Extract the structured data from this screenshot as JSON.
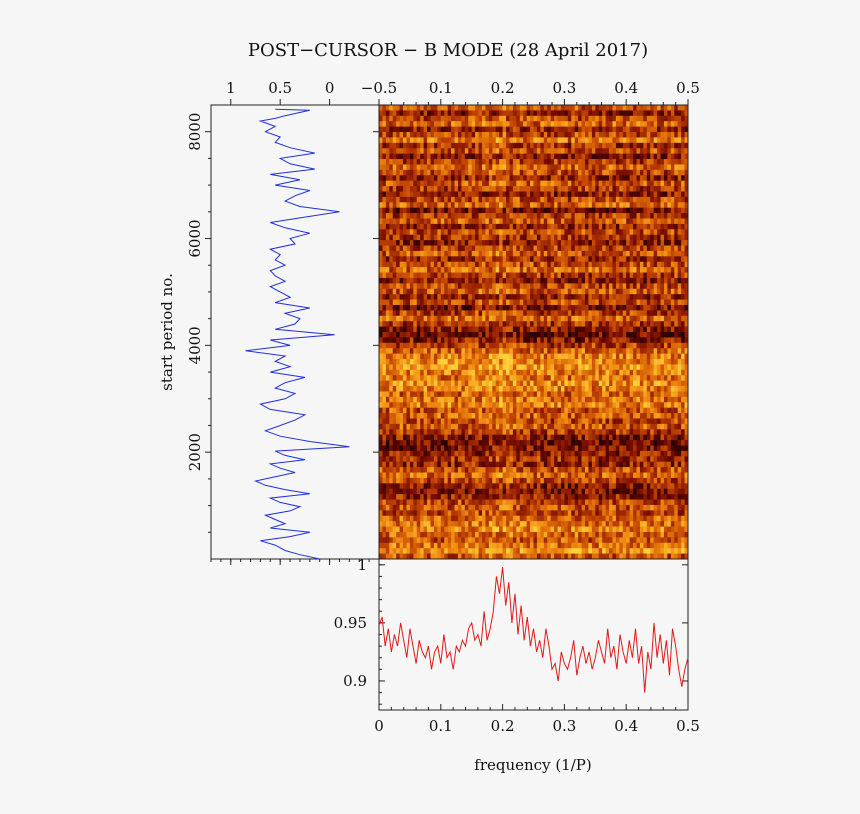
{
  "title": "POST−CURSOR − B MODE (28 April 2017)",
  "chart_data": [
    {
      "type": "line",
      "name": "side-profile",
      "orientation": "vertical",
      "xlim": [
        1.2,
        -0.5
      ],
      "ylim": [
        0,
        8500
      ],
      "x_ticks": [
        "1",
        "0.5",
        "0",
        "−0.5"
      ],
      "x_tick_values": [
        1,
        0.5,
        0,
        -0.5
      ],
      "y_ticks": [
        "2000",
        "4000",
        "6000",
        "8000"
      ],
      "y_tick_values": [
        2000,
        4000,
        6000,
        8000
      ],
      "ylabel": "start period no.",
      "color": "#1f2fe0",
      "x": [
        0.1,
        0.3,
        0.45,
        0.55,
        0.7,
        0.4,
        0.2,
        0.6,
        0.45,
        0.55,
        0.65,
        0.4,
        0.3,
        0.5,
        0.6,
        0.2,
        0.45,
        0.65,
        0.75,
        0.55,
        0.35,
        0.5,
        0.6,
        0.25,
        0.45,
        0.55,
        -0.2,
        0.2,
        0.5,
        0.65,
        0.5,
        0.35,
        0.25,
        0.6,
        0.7,
        0.45,
        0.35,
        0.55,
        0.45,
        0.25,
        0.6,
        0.4,
        0.55,
        0.45,
        0.85,
        0.4,
        0.6,
        -0.05,
        0.55,
        0.35,
        0.3,
        0.45,
        0.2,
        0.55,
        0.4,
        0.5,
        0.6,
        0.45,
        0.55,
        0.6,
        0.45,
        0.55,
        0.5,
        0.6,
        0.35,
        0.4,
        0.2,
        0.45,
        0.6,
        -0.1,
        0.3,
        0.45,
        0.35,
        0.2,
        0.55,
        0.3,
        0.6,
        0.15,
        0.4,
        0.5,
        0.15,
        0.4,
        0.55,
        0.5,
        0.65,
        0.55,
        0.7,
        0.55,
        0.45,
        0.2,
        0.55
      ],
      "y": [
        0,
        80,
        160,
        260,
        340,
        420,
        500,
        580,
        660,
        740,
        820,
        900,
        980,
        1060,
        1140,
        1220,
        1300,
        1380,
        1460,
        1540,
        1620,
        1700,
        1780,
        1860,
        1940,
        2020,
        2100,
        2200,
        2300,
        2400,
        2500,
        2600,
        2700,
        2800,
        2900,
        3000,
        3100,
        3200,
        3300,
        3400,
        3500,
        3600,
        3700,
        3800,
        3900,
        4000,
        4100,
        4200,
        4300,
        4400,
        4500,
        4600,
        4700,
        4800,
        4900,
        5000,
        5100,
        5200,
        5300,
        5400,
        5500,
        5600,
        5700,
        5800,
        5900,
        6000,
        6100,
        6200,
        6300,
        6500,
        6600,
        6700,
        6800,
        6900,
        7000,
        7100,
        7200,
        7300,
        7400,
        7500,
        7600,
        7700,
        7800,
        7900,
        8000,
        8100,
        8200,
        8250,
        8300,
        8400,
        8420
      ]
    },
    {
      "type": "heatmap",
      "name": "fluctuation-spectrum",
      "x_ticks": [
        "0.1",
        "0.2",
        "0.3",
        "0.4",
        "0.5"
      ],
      "x_tick_values": [
        0.1,
        0.2,
        0.3,
        0.4,
        0.5
      ],
      "xlim": [
        0,
        0.5
      ],
      "ylim": [
        0,
        8500
      ],
      "colormap": [
        "#2a0000",
        "#7a0d00",
        "#c24400",
        "#f08a10",
        "#ffd23a"
      ],
      "rows": 84,
      "cols": 90,
      "row_levels": [
        0.55,
        0.3,
        0.5,
        0.6,
        0.35,
        0.5,
        0.65,
        0.4,
        0.55,
        0.3,
        0.45,
        0.6,
        0.5,
        0.35,
        0.55,
        0.45,
        0.3,
        0.5,
        0.6,
        0.25,
        0.45,
        0.55,
        0.35,
        0.5,
        0.4,
        0.3,
        0.45,
        0.55,
        0.35,
        0.5,
        0.6,
        0.45,
        0.3,
        0.5,
        0.55,
        0.35,
        0.5,
        0.25,
        0.45,
        0.6,
        0.4,
        0.3,
        0.2,
        0.3,
        0.45,
        0.6,
        0.7,
        0.75,
        0.8,
        0.7,
        0.65,
        0.75,
        0.7,
        0.6,
        0.65,
        0.7,
        0.55,
        0.6,
        0.5,
        0.55,
        0.45,
        0.3,
        0.2,
        0.25,
        0.3,
        0.4,
        0.35,
        0.55,
        0.6,
        0.5,
        0.3,
        0.25,
        0.35,
        0.5,
        0.55,
        0.5,
        0.6,
        0.65,
        0.7,
        0.6,
        0.55,
        0.65,
        0.75,
        0.55
      ],
      "peak_frequency": 0.19
    },
    {
      "type": "line",
      "name": "average-spectrum",
      "xlim": [
        0,
        0.5
      ],
      "ylim": [
        0.875,
        1.005
      ],
      "x_ticks": [
        "0",
        "0.1",
        "0.2",
        "0.3",
        "0.4",
        "0.5"
      ],
      "x_tick_values": [
        0,
        0.1,
        0.2,
        0.3,
        0.4,
        0.5
      ],
      "y_ticks": [
        "0.9",
        "0.95",
        "1"
      ],
      "y_tick_values": [
        0.9,
        0.95,
        1
      ],
      "xlabel": "frequency (1/P)",
      "color": "#e01a1a",
      "x": [
        0,
        0.005,
        0.01,
        0.015,
        0.02,
        0.025,
        0.03,
        0.035,
        0.04,
        0.045,
        0.05,
        0.055,
        0.06,
        0.065,
        0.07,
        0.075,
        0.08,
        0.085,
        0.09,
        0.095,
        0.1,
        0.105,
        0.11,
        0.115,
        0.12,
        0.125,
        0.13,
        0.135,
        0.14,
        0.145,
        0.15,
        0.155,
        0.16,
        0.165,
        0.17,
        0.175,
        0.18,
        0.185,
        0.19,
        0.195,
        0.2,
        0.205,
        0.21,
        0.215,
        0.22,
        0.225,
        0.23,
        0.235,
        0.24,
        0.245,
        0.25,
        0.255,
        0.26,
        0.265,
        0.27,
        0.275,
        0.28,
        0.285,
        0.29,
        0.295,
        0.3,
        0.305,
        0.31,
        0.315,
        0.32,
        0.325,
        0.33,
        0.335,
        0.34,
        0.345,
        0.35,
        0.355,
        0.36,
        0.365,
        0.37,
        0.375,
        0.38,
        0.385,
        0.39,
        0.395,
        0.4,
        0.405,
        0.41,
        0.415,
        0.42,
        0.425,
        0.43,
        0.435,
        0.44,
        0.445,
        0.45,
        0.455,
        0.46,
        0.465,
        0.47,
        0.475,
        0.48,
        0.485,
        0.49,
        0.495,
        0.5
      ],
      "y": [
        0.948,
        0.955,
        0.93,
        0.945,
        0.925,
        0.94,
        0.93,
        0.95,
        0.935,
        0.92,
        0.945,
        0.93,
        0.915,
        0.935,
        0.925,
        0.92,
        0.93,
        0.91,
        0.925,
        0.93,
        0.915,
        0.94,
        0.92,
        0.925,
        0.91,
        0.93,
        0.925,
        0.935,
        0.93,
        0.945,
        0.95,
        0.935,
        0.94,
        0.93,
        0.96,
        0.935,
        0.945,
        0.96,
        0.99,
        0.975,
        0.998,
        0.965,
        0.985,
        0.95,
        0.975,
        0.94,
        0.965,
        0.935,
        0.955,
        0.93,
        0.945,
        0.925,
        0.935,
        0.92,
        0.945,
        0.93,
        0.91,
        0.915,
        0.9,
        0.925,
        0.915,
        0.91,
        0.92,
        0.935,
        0.905,
        0.92,
        0.93,
        0.915,
        0.925,
        0.91,
        0.92,
        0.935,
        0.925,
        0.915,
        0.945,
        0.92,
        0.93,
        0.91,
        0.94,
        0.925,
        0.915,
        0.935,
        0.92,
        0.945,
        0.915,
        0.93,
        0.89,
        0.925,
        0.91,
        0.95,
        0.92,
        0.94,
        0.915,
        0.935,
        0.905,
        0.945,
        0.93,
        0.91,
        0.895,
        0.91,
        0.92
      ]
    }
  ]
}
